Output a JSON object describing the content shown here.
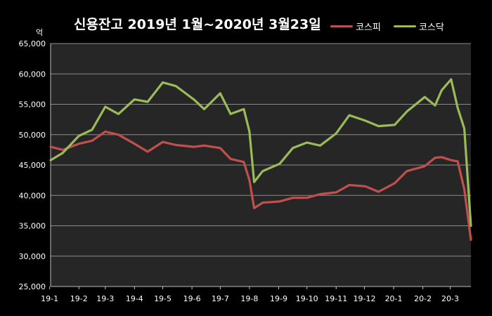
{
  "chart_data": {
    "type": "line",
    "title": "신용잔고 2019년 1월~2020년 3월23일",
    "unit": "억",
    "ylim": [
      25000,
      65000
    ],
    "grid": true,
    "legend_position": "top-right",
    "x_tick_labels": [
      "19-1",
      "19-2",
      "19-3",
      "19-4",
      "19-5",
      "19-6",
      "19-7",
      "19-8",
      "19-9",
      "19-10",
      "19-11",
      "19-12",
      "20-1",
      "20-2",
      "20-3"
    ],
    "y_tick_labels": [
      "25,000",
      "30,000",
      "35,000",
      "40,000",
      "45,000",
      "50,000",
      "55,000",
      "60,000",
      "65,000"
    ],
    "y_ticks": [
      25000,
      30000,
      35000,
      40000,
      45000,
      50000,
      55000,
      60000,
      65000
    ],
    "x": [
      "2019-01-02",
      "2019-01-15",
      "2019-02-01",
      "2019-02-15",
      "2019-03-01",
      "2019-03-15",
      "2019-04-01",
      "2019-04-15",
      "2019-05-01",
      "2019-05-15",
      "2019-06-03",
      "2019-06-14",
      "2019-07-01",
      "2019-07-12",
      "2019-07-26",
      "2019-08-01",
      "2019-08-06",
      "2019-08-15",
      "2019-09-02",
      "2019-09-16",
      "2019-10-01",
      "2019-10-15",
      "2019-11-01",
      "2019-11-15",
      "2019-12-02",
      "2019-12-16",
      "2020-01-02",
      "2020-01-15",
      "2020-02-03",
      "2020-02-14",
      "2020-02-21",
      "2020-03-02",
      "2020-03-09",
      "2020-03-16",
      "2020-03-23"
    ],
    "series": [
      {
        "name": "코스피",
        "color": "#c0504d",
        "values": [
          48000,
          47500,
          48500,
          49000,
          50500,
          50000,
          48500,
          47200,
          48800,
          48300,
          48000,
          48200,
          47800,
          46000,
          45500,
          42500,
          37900,
          38800,
          39000,
          39600,
          39600,
          40200,
          40500,
          41700,
          41500,
          40600,
          42000,
          44000,
          44800,
          46200,
          46300,
          45800,
          45600,
          41000,
          32700
        ]
      },
      {
        "name": "코스닥",
        "color": "#9bbb59",
        "values": [
          45800,
          47000,
          49800,
          50800,
          54600,
          53400,
          55800,
          55400,
          58600,
          58000,
          55800,
          54200,
          56800,
          53400,
          54200,
          50500,
          42200,
          44000,
          45200,
          47800,
          48700,
          48200,
          50200,
          53200,
          52300,
          51400,
          51600,
          53800,
          56200,
          54800,
          57300,
          59100,
          54400,
          51000,
          35000
        ]
      }
    ]
  }
}
